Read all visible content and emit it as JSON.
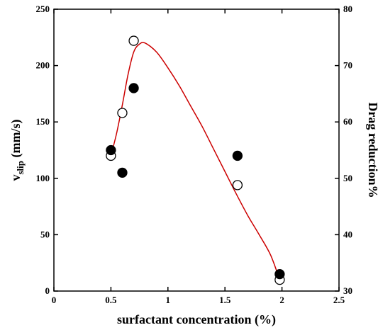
{
  "chart_data": {
    "type": "scatter",
    "xlabel": "surfactant concentration (%)",
    "ylabel_left_main": "v",
    "ylabel_left_sub": "slip",
    "ylabel_left_unit": " (mm/s)",
    "ylabel_right": "Drag reduction%",
    "xlim": [
      0,
      2.5
    ],
    "ylim_left": [
      0,
      250
    ],
    "ylim_right": [
      30,
      80
    ],
    "x_ticks": [
      0,
      0.5,
      1,
      1.5,
      2,
      2.5
    ],
    "x_tick_labels": [
      "0",
      "0.5",
      "1",
      "1.5",
      "2",
      "2.5"
    ],
    "y_left_ticks": [
      0,
      50,
      100,
      150,
      200,
      250
    ],
    "y_left_tick_labels": [
      "0",
      "50",
      "100",
      "150",
      "200",
      "250"
    ],
    "y_right_ticks": [
      30,
      40,
      50,
      60,
      70,
      80
    ],
    "y_right_tick_labels": [
      "30",
      "40",
      "50",
      "60",
      "70",
      "80"
    ],
    "series": [
      {
        "marker": "open-circle",
        "axis": "left",
        "x": [
          0.5,
          0.6,
          0.7,
          1.61,
          1.98
        ],
        "y": [
          120,
          158,
          222,
          94,
          10
        ]
      },
      {
        "marker": "filled-circle",
        "axis": "left",
        "x": [
          0.5,
          0.6,
          0.7,
          1.61,
          1.98
        ],
        "y": [
          125,
          105,
          180,
          120,
          15
        ]
      }
    ],
    "fit_curve": {
      "color": "#cc0000",
      "axis": "left",
      "x": [
        0.5,
        0.55,
        0.6,
        0.65,
        0.7,
        0.75,
        0.8,
        0.9,
        1.0,
        1.1,
        1.2,
        1.3,
        1.4,
        1.5,
        1.6,
        1.7,
        1.8,
        1.9,
        1.98
      ],
      "y": [
        120,
        140,
        165,
        192,
        212,
        219,
        220,
        212,
        198,
        182,
        164,
        146,
        126,
        106,
        86,
        67,
        50,
        32,
        10
      ]
    },
    "grid": false
  }
}
